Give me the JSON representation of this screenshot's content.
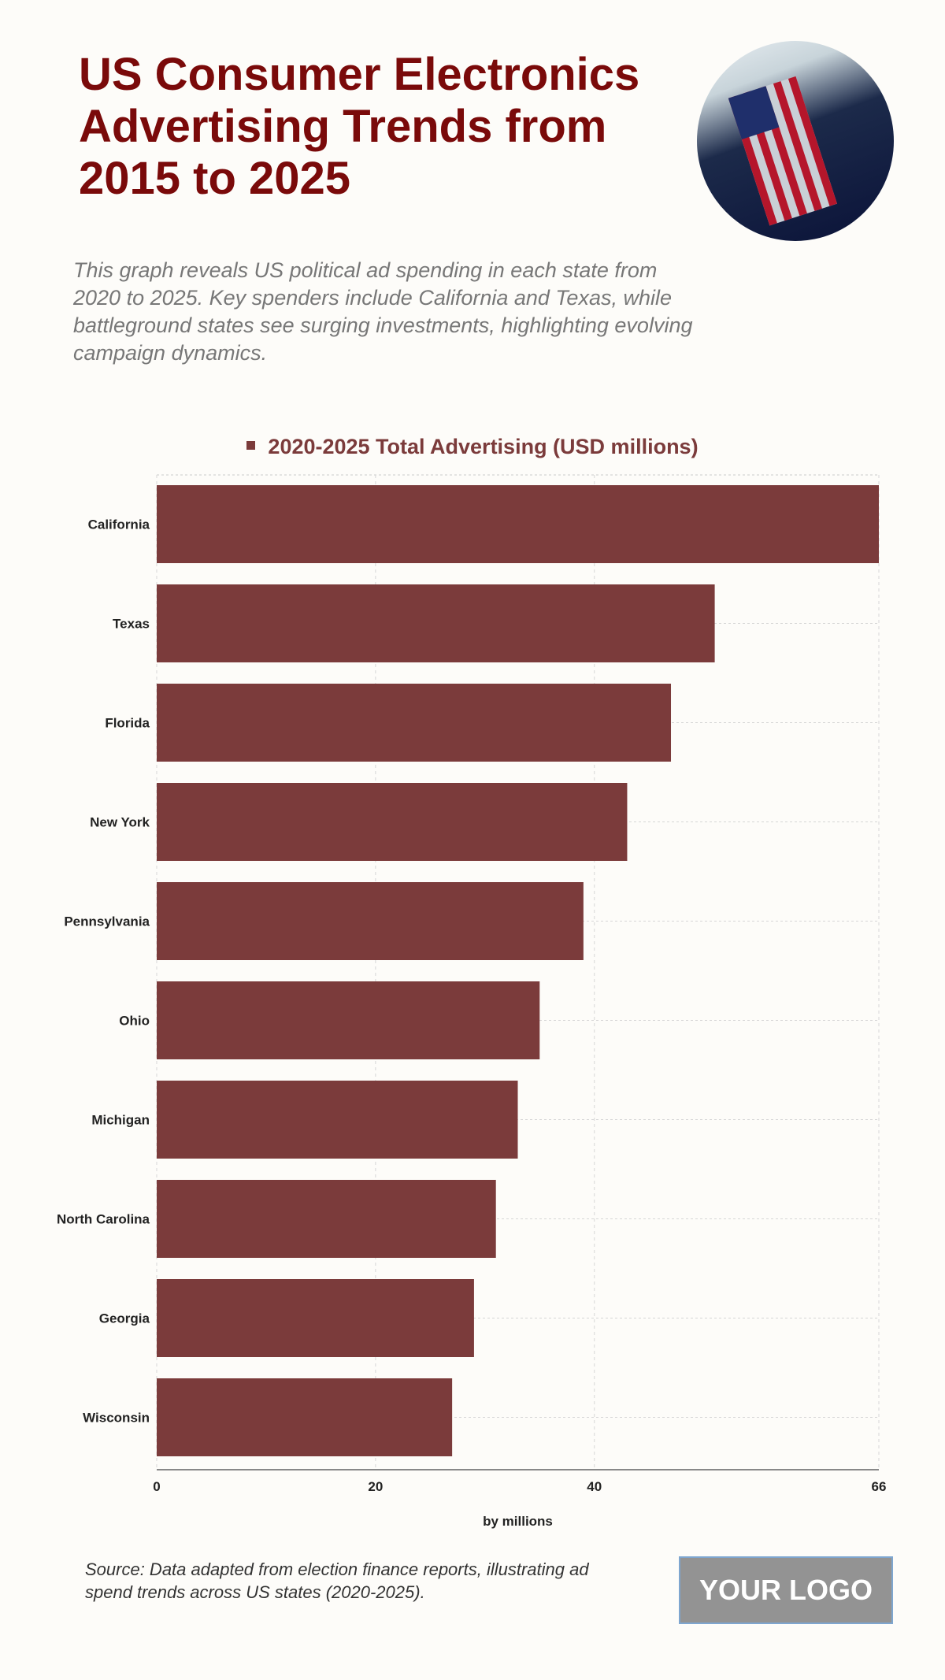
{
  "header": {
    "title": "US Consumer Electronics Advertising Trends from 2015 to 2025",
    "subtitle": "This graph reveals US political ad spending in each state from 2020 to 2025. Key spenders include California and Texas, while battleground states see surging investments, highlighting evolving campaign dynamics."
  },
  "chart_data": {
    "type": "bar",
    "orientation": "horizontal",
    "legend": "2020-2025 Total Advertising (USD millions)",
    "categories": [
      "California",
      "Texas",
      "Florida",
      "New York",
      "Pennsylvania",
      "Ohio",
      "Michigan",
      "North Carolina",
      "Georgia",
      "Wisconsin"
    ],
    "values": [
      66,
      51,
      47,
      43,
      39,
      35,
      33,
      31,
      29,
      27
    ],
    "xlabel": "by millions",
    "xlim": [
      0,
      66
    ],
    "xticks": [
      0,
      20,
      40,
      66
    ],
    "grid": true,
    "bar_color": "#7b3b3b",
    "legend_position": "top"
  },
  "footer": {
    "source": "Source: Data adapted from election finance reports, illustrating ad spend trends across US states (2020-2025).",
    "logo": "YOUR LOGO"
  }
}
